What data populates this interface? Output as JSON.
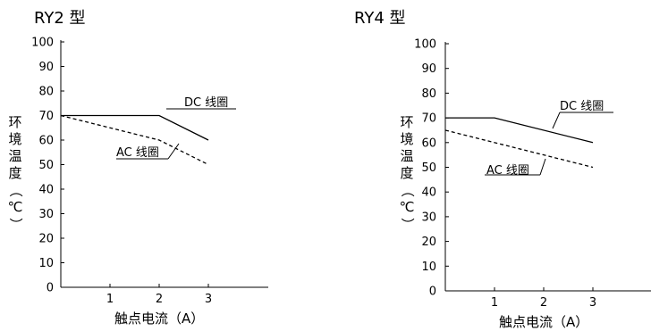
{
  "chart_data": [
    {
      "type": "line",
      "title": "RY2 型",
      "xlabel": "触点电流（A）",
      "ylabel": "环境温度（℃）",
      "xlim": [
        0,
        4
      ],
      "ylim": [
        0,
        100
      ],
      "x_ticks": [
        "1",
        "2",
        "3"
      ],
      "y_ticks": [
        "0",
        "10",
        "20",
        "30",
        "40",
        "50",
        "60",
        "70",
        "80",
        "90",
        "100"
      ],
      "grid": false,
      "series": [
        {
          "name": "DC 线圈",
          "style": "solid",
          "color": "#000000",
          "points": [
            [
              0,
              70
            ],
            [
              2,
              70
            ],
            [
              3,
              60
            ]
          ]
        },
        {
          "name": "AC 线圈",
          "style": "dashed",
          "color": "#000000",
          "points": [
            [
              0,
              70
            ],
            [
              2,
              60
            ],
            [
              3,
              50
            ]
          ]
        }
      ]
    },
    {
      "type": "line",
      "title": "RY4 型",
      "xlabel": "触点电流（A）",
      "ylabel": "环境温度（℃）",
      "xlim": [
        0,
        4
      ],
      "ylim": [
        0,
        100
      ],
      "x_ticks": [
        "1",
        "2",
        "3"
      ],
      "y_ticks": [
        "0",
        "10",
        "20",
        "30",
        "40",
        "50",
        "60",
        "70",
        "80",
        "90",
        "100"
      ],
      "grid": false,
      "series": [
        {
          "name": "DC 线圈",
          "style": "solid",
          "color": "#000000",
          "points": [
            [
              0,
              70
            ],
            [
              1,
              70
            ],
            [
              3,
              60
            ]
          ]
        },
        {
          "name": "AC 线圈",
          "style": "dashed",
          "color": "#000000",
          "points": [
            [
              0,
              65
            ],
            [
              3,
              50
            ]
          ]
        }
      ]
    }
  ]
}
